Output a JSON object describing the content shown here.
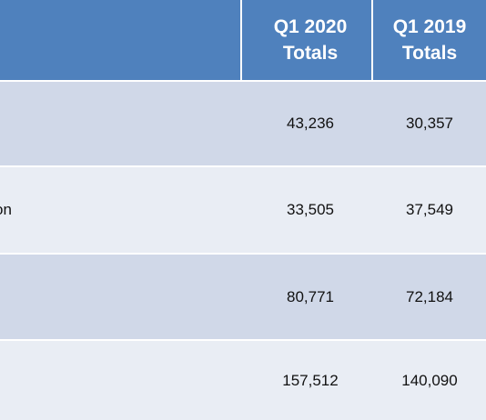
{
  "table": {
    "headers": {
      "col1_line1": "Q1 2020",
      "col1_line2": "Totals",
      "col2_line1": "Q1 2019",
      "col2_line2": "Totals"
    },
    "rows": [
      {
        "label": "",
        "q1_2020": "43,236",
        "q1_2019": "30,357"
      },
      {
        "label": "on",
        "q1_2020": "33,505",
        "q1_2019": "37,549"
      },
      {
        "label": "",
        "q1_2020": "80,771",
        "q1_2019": "72,184"
      },
      {
        "label": "",
        "q1_2020": "157,512",
        "q1_2019": "140,090"
      }
    ]
  },
  "colors": {
    "header": "#4f81bd",
    "row_dark": "#d0d8e8",
    "row_light": "#e9edf4"
  }
}
